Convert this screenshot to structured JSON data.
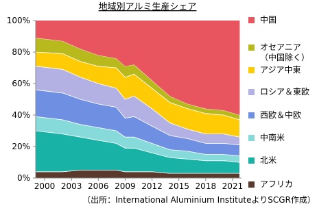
{
  "chart_data": {
    "type": "stacked_area",
    "title": "地域別アルミ生産シェア",
    "note": "（出所：International Aluminium InstituteよりSCGR作成）",
    "x": [
      1999,
      2002,
      2004,
      2006,
      2008,
      2009,
      2010,
      2012,
      2014,
      2016,
      2018,
      2020,
      2021.8
    ],
    "series": [
      {
        "name": "アフリカ",
        "color": "#5b3a2e",
        "values": [
          4,
          4,
          5,
          5,
          5,
          4,
          4,
          4,
          3,
          3,
          3,
          3,
          3
        ]
      },
      {
        "name": "北米",
        "color": "#19b2a6",
        "values": [
          26,
          24,
          21,
          19,
          17,
          15,
          15,
          12,
          10,
          9,
          8,
          8,
          7
        ]
      },
      {
        "name": "中南米",
        "color": "#86dada",
        "values": [
          9,
          9,
          8,
          8,
          8,
          7,
          7,
          6,
          5,
          5,
          4,
          4,
          4
        ]
      },
      {
        "name": "西欧＆中欧",
        "color": "#6f8fe2",
        "values": [
          17,
          17,
          16,
          15,
          15,
          12,
          13,
          11,
          9,
          8,
          7,
          7,
          7
        ]
      },
      {
        "name": "ロシア＆東欧",
        "color": "#b3b1e3",
        "values": [
          15,
          15,
          14,
          13,
          12,
          12,
          13,
          11,
          8,
          6,
          6,
          6,
          5
        ]
      },
      {
        "name": "アジア中東",
        "color": "#ffcb05",
        "values": [
          9,
          10,
          10,
          11,
          13,
          14,
          14,
          13,
          13,
          13,
          13,
          12,
          11
        ]
      },
      {
        "name": "オセアニア\n（中国除く）",
        "color": "#b7b91c",
        "values": [
          9,
          8,
          8,
          7,
          6,
          7,
          6,
          5,
          4,
          3,
          3,
          3,
          3
        ]
      },
      {
        "name": "中国",
        "color": "#e8555f",
        "values": [
          11,
          13,
          18,
          22,
          24,
          29,
          28,
          38,
          48,
          53,
          56,
          57,
          60
        ]
      }
    ],
    "xlim": [
      1999,
      2022
    ],
    "xticks": [
      2000,
      2003,
      2006,
      2009,
      2012,
      2015,
      2018,
      2021
    ],
    "ylim": [
      0,
      100
    ],
    "yticks": [
      {
        "value": 0,
        "label": "0%"
      },
      {
        "value": 20,
        "label": "20%"
      },
      {
        "value": 40,
        "label": "40%"
      },
      {
        "value": 60,
        "label": "60%"
      },
      {
        "value": 80,
        "label": "80%"
      },
      {
        "value": 100,
        "label": "100%"
      }
    ]
  }
}
